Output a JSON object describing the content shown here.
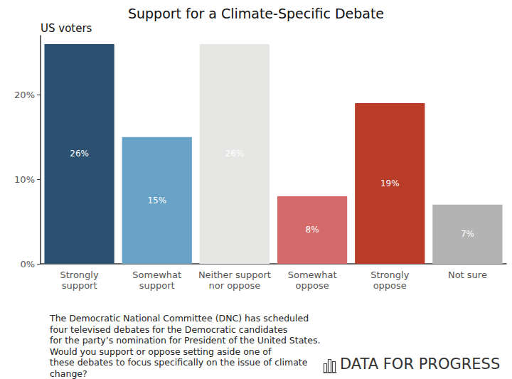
{
  "chart_data": {
    "type": "bar",
    "title": "Support for a Climate-Specific Debate",
    "subtitle": "US voters",
    "categories": [
      "Strongly\nsupport",
      "Somewhat\nsupport",
      "Neither support\nnor oppose",
      "Somewhat\noppose",
      "Strongly\noppose",
      "Not sure"
    ],
    "values": [
      26,
      15,
      26,
      8,
      19,
      7
    ],
    "value_labels": [
      "26%",
      "15%",
      "26%",
      "8%",
      "19%",
      "7%"
    ],
    "colors": [
      "#2c5170",
      "#68a3c7",
      "#e6e6e4",
      "#d46a6a",
      "#b83c27",
      "#b3b3b3"
    ],
    "data_labels": true,
    "ylim": [
      0,
      27
    ],
    "yticks": [
      {
        "value": 0,
        "label": "0%"
      },
      {
        "value": 10,
        "label": "10%"
      },
      {
        "value": 20,
        "label": "20%"
      }
    ],
    "grid": false,
    "caption": "The Democratic National Committee (DNC) has scheduled\nfour televised debates for the Democratic candidates\nfor the party’s nomination for President of the United States.\nWould you support or oppose setting aside one of\nthese debates to focus specifically on the issue of climate\nchange?",
    "source": "DATA FOR PROGRESS"
  }
}
